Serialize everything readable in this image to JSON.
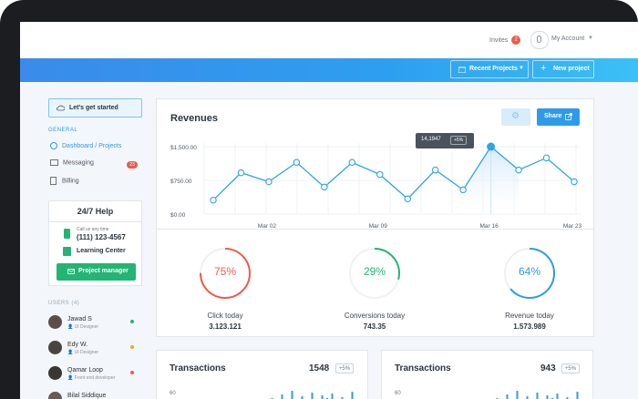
{
  "topbar": {
    "invites_label": "Invites",
    "invites_count": "2",
    "account_label": "My Account"
  },
  "toolbar": {
    "recent_projects_label": "Recent Projects",
    "new_project_label": "New project"
  },
  "sidebar": {
    "get_started_label": "Let's get started",
    "general_label": "GENERAL",
    "items": [
      {
        "label": "Dashboard / Projects",
        "active": true
      },
      {
        "label": "Messaging",
        "badge": "23"
      },
      {
        "label": "Billing"
      }
    ],
    "help": {
      "title": "24/7 Help",
      "call_text": "Call us any time",
      "phone": "(111) 123-4567",
      "learning_center": "Learning Center",
      "project_manager_label": "Project manager"
    },
    "users_label": "USERS (4)",
    "users": [
      {
        "name": "Jawad S",
        "role": "UI Designer",
        "status_color": "#22b573"
      },
      {
        "name": "Edy W.",
        "role": "UI Designer",
        "status_color": "#f5a623"
      },
      {
        "name": "Qamar Loop",
        "role": "Front end developer",
        "status_color": "#ee5a4a"
      },
      {
        "name": "Bilal Siddique",
        "role": "",
        "status_color": "#22b573"
      }
    ]
  },
  "revenues": {
    "title": "Revenues",
    "share_label": "Share",
    "tooltip_value": "14,1947",
    "tooltip_change": "+5%"
  },
  "chart_data": {
    "type": "area",
    "title": "Revenues",
    "y_ticks": [
      "$1,500.00",
      "$750.00",
      "$0.00"
    ],
    "ylim": [
      0,
      1500
    ],
    "x_ticks": [
      "Mar 02",
      "Mar 09",
      "Mar 16",
      "Mar 23"
    ],
    "series": [
      {
        "values": [
          310,
          920,
          720,
          1150,
          600,
          1150,
          880,
          340,
          980,
          540,
          1500,
          980,
          1250,
          720
        ]
      }
    ],
    "highlight_index": 10,
    "grid": true
  },
  "stats": [
    {
      "percent": "75%",
      "fraction": 0.75,
      "label": "Click today",
      "value": "3.123.121",
      "color": "#ee5a4a"
    },
    {
      "percent": "29%",
      "fraction": 0.29,
      "label": "Conversions today",
      "value": "743.35",
      "color": "#22b573"
    },
    {
      "percent": "64%",
      "fraction": 0.64,
      "label": "Revenue today",
      "value": "1.573.989",
      "color": "#2f9be8"
    }
  ],
  "transactions": [
    {
      "title": "Transactions",
      "count": "1548",
      "change": "+5%",
      "y_tick": "60"
    },
    {
      "title": "Transactions",
      "count": "943",
      "change": "+5%",
      "y_tick": "60"
    }
  ],
  "colors": {
    "accent": "#2f9be8",
    "green": "#22b573",
    "red": "#ee5a4a"
  }
}
